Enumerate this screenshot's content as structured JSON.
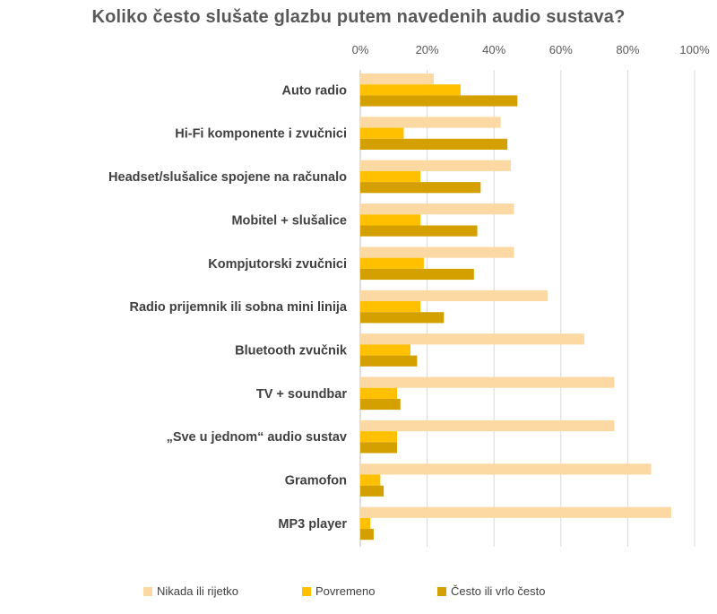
{
  "chart_data": {
    "type": "bar",
    "orientation": "horizontal",
    "title": "Koliko često slušate glazbu putem navedenih audio sustava?",
    "xlabel": "",
    "ylabel": "",
    "xlim": [
      0,
      100
    ],
    "x_ticks": [
      "0%",
      "20%",
      "40%",
      "60%",
      "80%",
      "100%"
    ],
    "grid": true,
    "legend_position": "bottom",
    "categories": [
      "Auto radio",
      "Hi-Fi komponente i zvučnici",
      "Headset/slušalice spojene na računalo",
      "Mobitel + slušalice",
      "Kompjutorski zvučnici",
      "Radio prijemnik ili sobna mini linija",
      "Bluetooth zvučnik",
      "TV + soundbar",
      "„Sve u jednom“ audio sustav",
      "Gramofon",
      "MP3 player"
    ],
    "series": [
      {
        "name": "Nikada ili rijetko",
        "color": "#FCD9A2",
        "values": [
          22,
          42,
          45,
          46,
          46,
          56,
          67,
          76,
          76,
          87,
          93
        ]
      },
      {
        "name": "Povremeno",
        "color": "#FFC000",
        "values": [
          30,
          13,
          18,
          18,
          19,
          18,
          15,
          11,
          11,
          6,
          3
        ]
      },
      {
        "name": "Često ili vrlo često",
        "color": "#D4A000",
        "values": [
          47,
          44,
          36,
          35,
          34,
          25,
          17,
          12,
          11,
          7,
          4
        ]
      }
    ]
  }
}
